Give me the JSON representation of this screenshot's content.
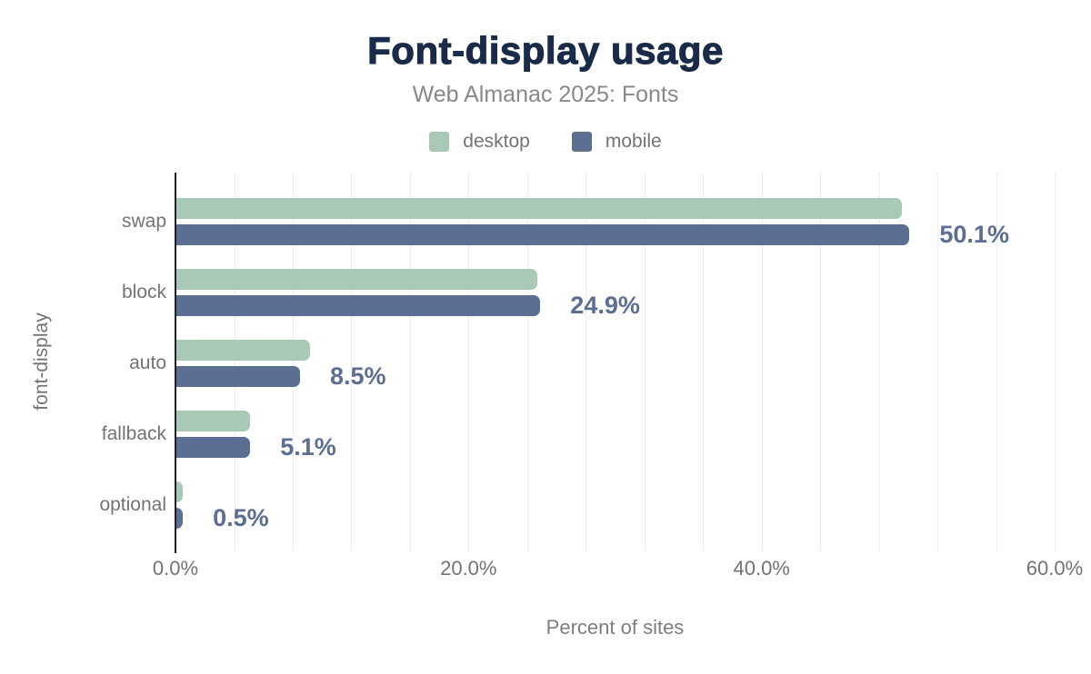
{
  "chart_data": {
    "type": "bar",
    "orientation": "horizontal",
    "title": "Font-display usage",
    "subtitle": "Web Almanac 2025: Fonts",
    "xlabel": "Percent of sites",
    "ylabel": "font-display",
    "categories": [
      "swap",
      "block",
      "auto",
      "fallback",
      "optional"
    ],
    "series": [
      {
        "name": "desktop",
        "color": "#a8c9b5",
        "values": [
          49.6,
          24.7,
          9.2,
          5.1,
          0.5
        ]
      },
      {
        "name": "mobile",
        "color": "#5c6e91",
        "values": [
          50.1,
          24.9,
          8.5,
          5.1,
          0.5
        ]
      }
    ],
    "value_labels": [
      "50.1%",
      "24.9%",
      "8.5%",
      "5.1%",
      "0.5%"
    ],
    "value_label_series": "mobile",
    "xlim": [
      0,
      60
    ],
    "x_ticks": [
      {
        "value": 0,
        "label": "0.0%"
      },
      {
        "value": 20,
        "label": "20.0%"
      },
      {
        "value": 40,
        "label": "40.0%"
      },
      {
        "value": 60,
        "label": "60.0%"
      }
    ],
    "grid": true,
    "grid_minor_step": 4,
    "legend_position": "top"
  },
  "colors": {
    "background": "#ffffff",
    "title": "#1a2b49",
    "subtitle_gray": "#85888c",
    "text_gray": "#707377",
    "value_label": "#5c6e91",
    "axis_line": "#1f2127",
    "gridline": "#ebeced",
    "desktop": "#a8c9b5",
    "mobile": "#5c6e91"
  }
}
